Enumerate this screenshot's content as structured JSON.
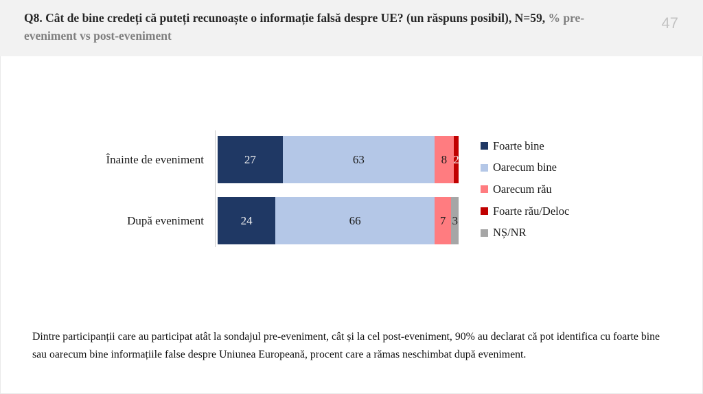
{
  "header": {
    "title_main": "Q8. Cât de bine credeți că puteți recunoaște o informație falsă despre UE? (un răspuns posibil), N=59,",
    "title_gray": " % pre-eveniment vs post-eveniment",
    "page_number": "47"
  },
  "chart_data": {
    "type": "bar",
    "orientation": "horizontal-stacked",
    "title": "",
    "xlabel": "",
    "ylabel": "",
    "xlim": [
      0,
      100
    ],
    "grid": false,
    "legend_position": "right",
    "categories": [
      "Înainte de eveniment",
      "După eveniment"
    ],
    "series": [
      {
        "name": "Foarte bine",
        "color": "#1F3864",
        "values": [
          27,
          24
        ]
      },
      {
        "name": "Oarecum bine",
        "color": "#B4C7E7",
        "values": [
          63,
          66
        ]
      },
      {
        "name": "Oarecum rău",
        "color": "#FF7C80",
        "values": [
          8,
          7
        ]
      },
      {
        "name": "Foarte rău/Deloc",
        "color": "#C00000",
        "values": [
          2,
          0
        ]
      },
      {
        "name": "NȘ/NR",
        "color": "#A6A6A6",
        "values": [
          0,
          3
        ]
      }
    ]
  },
  "footer": {
    "note": "Dintre participanții care au participat atât la sondajul pre-eveniment, cât și la cel post-eveniment, 90% au declarat că pot identifica cu foarte bine sau oarecum bine informațiile false despre Uniunea Europeană, procent care a rămas neschimbat după eveniment."
  }
}
